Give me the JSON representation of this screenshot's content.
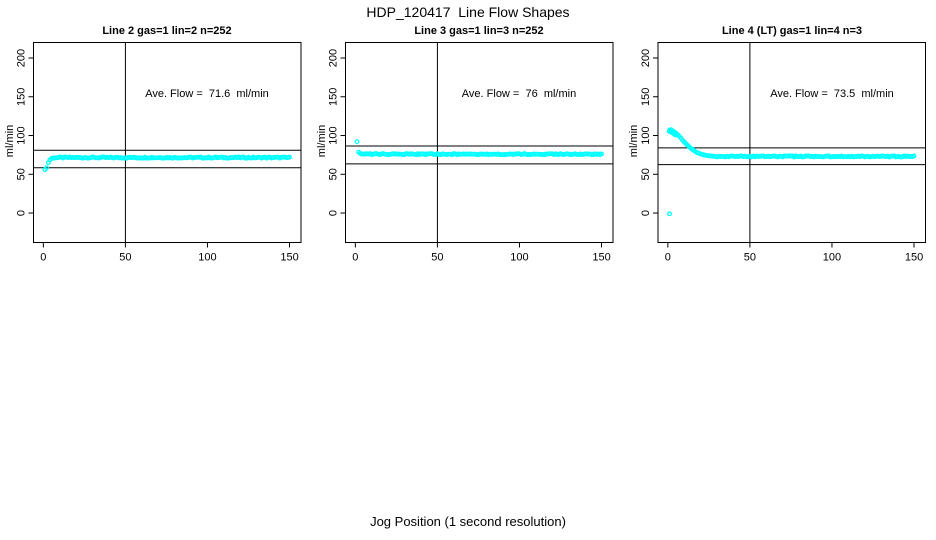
{
  "figure": {
    "background_color": "#ffffff",
    "point_color": "#00ffff",
    "axis_color": "#000000",
    "title": "HDP_120417  Line Flow Shapes",
    "xlabel": "Jog Position (1 second resolution)",
    "ylabel": "ml/min"
  },
  "chart_data": {
    "type": "scatter",
    "title": "HDP_120417  Line Flow Shapes",
    "xlabel": "Jog Position (1 second resolution)",
    "ylabel": "ml/min",
    "grid": false,
    "legend": "none",
    "marker": "open-circle",
    "x_ticks": [
      0,
      50,
      100,
      150
    ],
    "y_ticks": [
      0,
      50,
      100,
      150,
      200
    ],
    "x_range": [
      -6,
      157
    ],
    "y_range": [
      -38,
      220
    ],
    "panels": [
      {
        "title": "Line 2 gas=1 lin=2 n=252",
        "annotation": "Ave. Flow =  71.6  ml/min",
        "ave_flow_ml_min": 71.6,
        "n": 252,
        "vline_x": 50,
        "hline_upper": 81,
        "hline_lower": 58.5,
        "series": {
          "transient_points": [
            [
              1,
              56
            ],
            [
              2,
              58.5
            ],
            [
              3,
              65
            ],
            [
              4,
              68.5
            ],
            [
              5,
              70.3
            ],
            [
              6,
              71
            ]
          ],
          "steady": {
            "x_start": 7,
            "x_end": 150,
            "value": 71.5,
            "noise": 0.8
          },
          "outlier_points": []
        }
      },
      {
        "title": "Line 3 gas=1 lin=3 n=252",
        "annotation": "Ave. Flow =  76  ml/min",
        "ave_flow_ml_min": 76,
        "n": 252,
        "vline_x": 50,
        "hline_upper": 86.5,
        "hline_lower": 63.5,
        "series": {
          "transient_points": [
            [
              2,
              78.5
            ],
            [
              3,
              77
            ]
          ],
          "steady": {
            "x_start": 4,
            "x_end": 150,
            "value": 76,
            "noise": 0.7
          },
          "outlier_points": [
            [
              1,
              92
            ]
          ]
        }
      },
      {
        "title": "Line 4 (LT) gas=1 lin=4 n=3",
        "annotation": "Ave. Flow =  73.5  ml/min",
        "ave_flow_ml_min": 73.5,
        "n": 3,
        "vline_x": 50,
        "hline_upper": 84,
        "hline_lower": 62.5,
        "series": {
          "transient_points": [
            [
              1,
              107
            ],
            [
              1,
              105
            ],
            [
              2,
              107.5
            ],
            [
              2,
              104.5
            ],
            [
              3,
              106
            ],
            [
              3,
              103
            ],
            [
              4,
              104.5
            ],
            [
              4,
              101.5
            ],
            [
              5,
              103
            ],
            [
              5,
              100.5
            ],
            [
              6,
              101
            ],
            [
              7,
              99
            ],
            [
              8,
              96.5
            ],
            [
              9,
              94
            ],
            [
              10,
              91.5
            ],
            [
              11,
              89.5
            ],
            [
              12,
              87.5
            ],
            [
              13,
              85.5
            ],
            [
              14,
              83.5
            ],
            [
              15,
              82
            ],
            [
              16,
              80.5
            ],
            [
              17,
              79
            ],
            [
              18,
              78
            ],
            [
              19,
              77
            ],
            [
              20,
              76.2
            ],
            [
              21,
              75.5
            ],
            [
              22,
              75
            ],
            [
              23,
              74.5
            ],
            [
              24,
              74.2
            ],
            [
              25,
              73.9
            ],
            [
              26,
              73.6
            ],
            [
              27,
              73.4
            ],
            [
              28,
              73.2
            ]
          ],
          "steady": {
            "x_start": 29,
            "x_end": 150,
            "value": 73,
            "noise": 0.7
          },
          "outlier_points": [
            [
              1,
              -1
            ]
          ]
        }
      }
    ]
  }
}
